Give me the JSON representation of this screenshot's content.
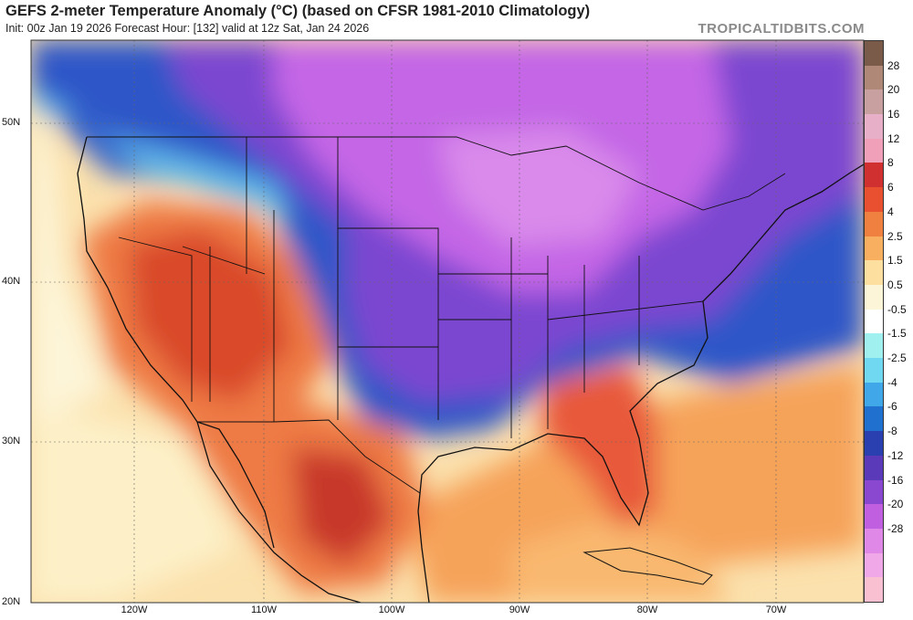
{
  "header": {
    "title": "GEFS 2-meter Temperature Anomaly (°C) (based on CFSR 1981-2010 Climatology)",
    "subtitle": "Init: 00z Jan 19 2026   Forecast Hour: [132]   valid at 12z Sat, Jan 24 2026",
    "credit": "TROPICALTIDBITS.COM"
  },
  "axes": {
    "lat_labels": [
      "50N",
      "40N",
      "30N",
      "20N"
    ],
    "lon_labels": [
      "120W",
      "110W",
      "100W",
      "90W",
      "80W",
      "70W"
    ]
  },
  "colorbar": {
    "labels": [
      "28",
      "20",
      "16",
      "12",
      "8",
      "6",
      "4",
      "2.5",
      "1.5",
      "0.5",
      "-0.5",
      "-1.5",
      "-2.5",
      "-4",
      "-6",
      "-8",
      "-12",
      "-16",
      "-20",
      "-28"
    ],
    "colors": [
      "#7a5a48",
      "#b08878",
      "#c9a0a0",
      "#e8b0c8",
      "#f0a0b8",
      "#d03030",
      "#e85030",
      "#f08040",
      "#f8b060",
      "#fde0a0",
      "#fdf5d8",
      "#ffffff",
      "#a0f0f0",
      "#70d8f0",
      "#40a8e8",
      "#2070d0",
      "#2a40b0",
      "#5a3ab8",
      "#8a48d0",
      "#c060e0",
      "#e088e8",
      "#f0a8e8",
      "#f8c0d0"
    ]
  },
  "colors": {
    "ocean": "#fbe1ad",
    "coast": "#111111"
  }
}
